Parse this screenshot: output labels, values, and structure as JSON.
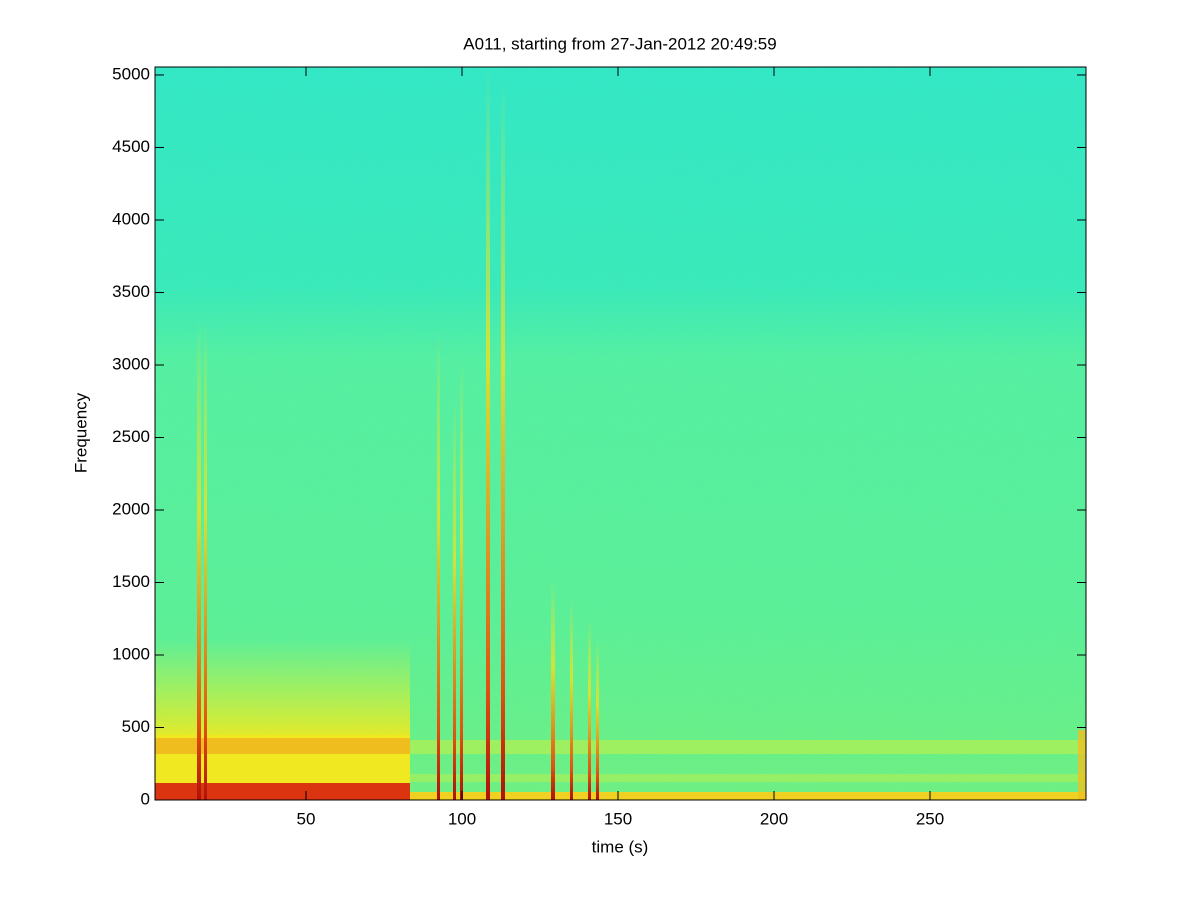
{
  "chart_data": {
    "type": "spectrogram",
    "title": "A011, starting from 27-Jan-2012 20:49:59",
    "x_label": "time (s)",
    "y_label": "Frequency",
    "xlim": [
      1.6,
      300
    ],
    "ylim": [
      0,
      5055
    ],
    "xticks": [
      50,
      100,
      150,
      200,
      250
    ],
    "yticks": [
      0,
      500,
      1000,
      1500,
      2000,
      2500,
      3000,
      3500,
      4000,
      4500,
      5000
    ]
  }
}
